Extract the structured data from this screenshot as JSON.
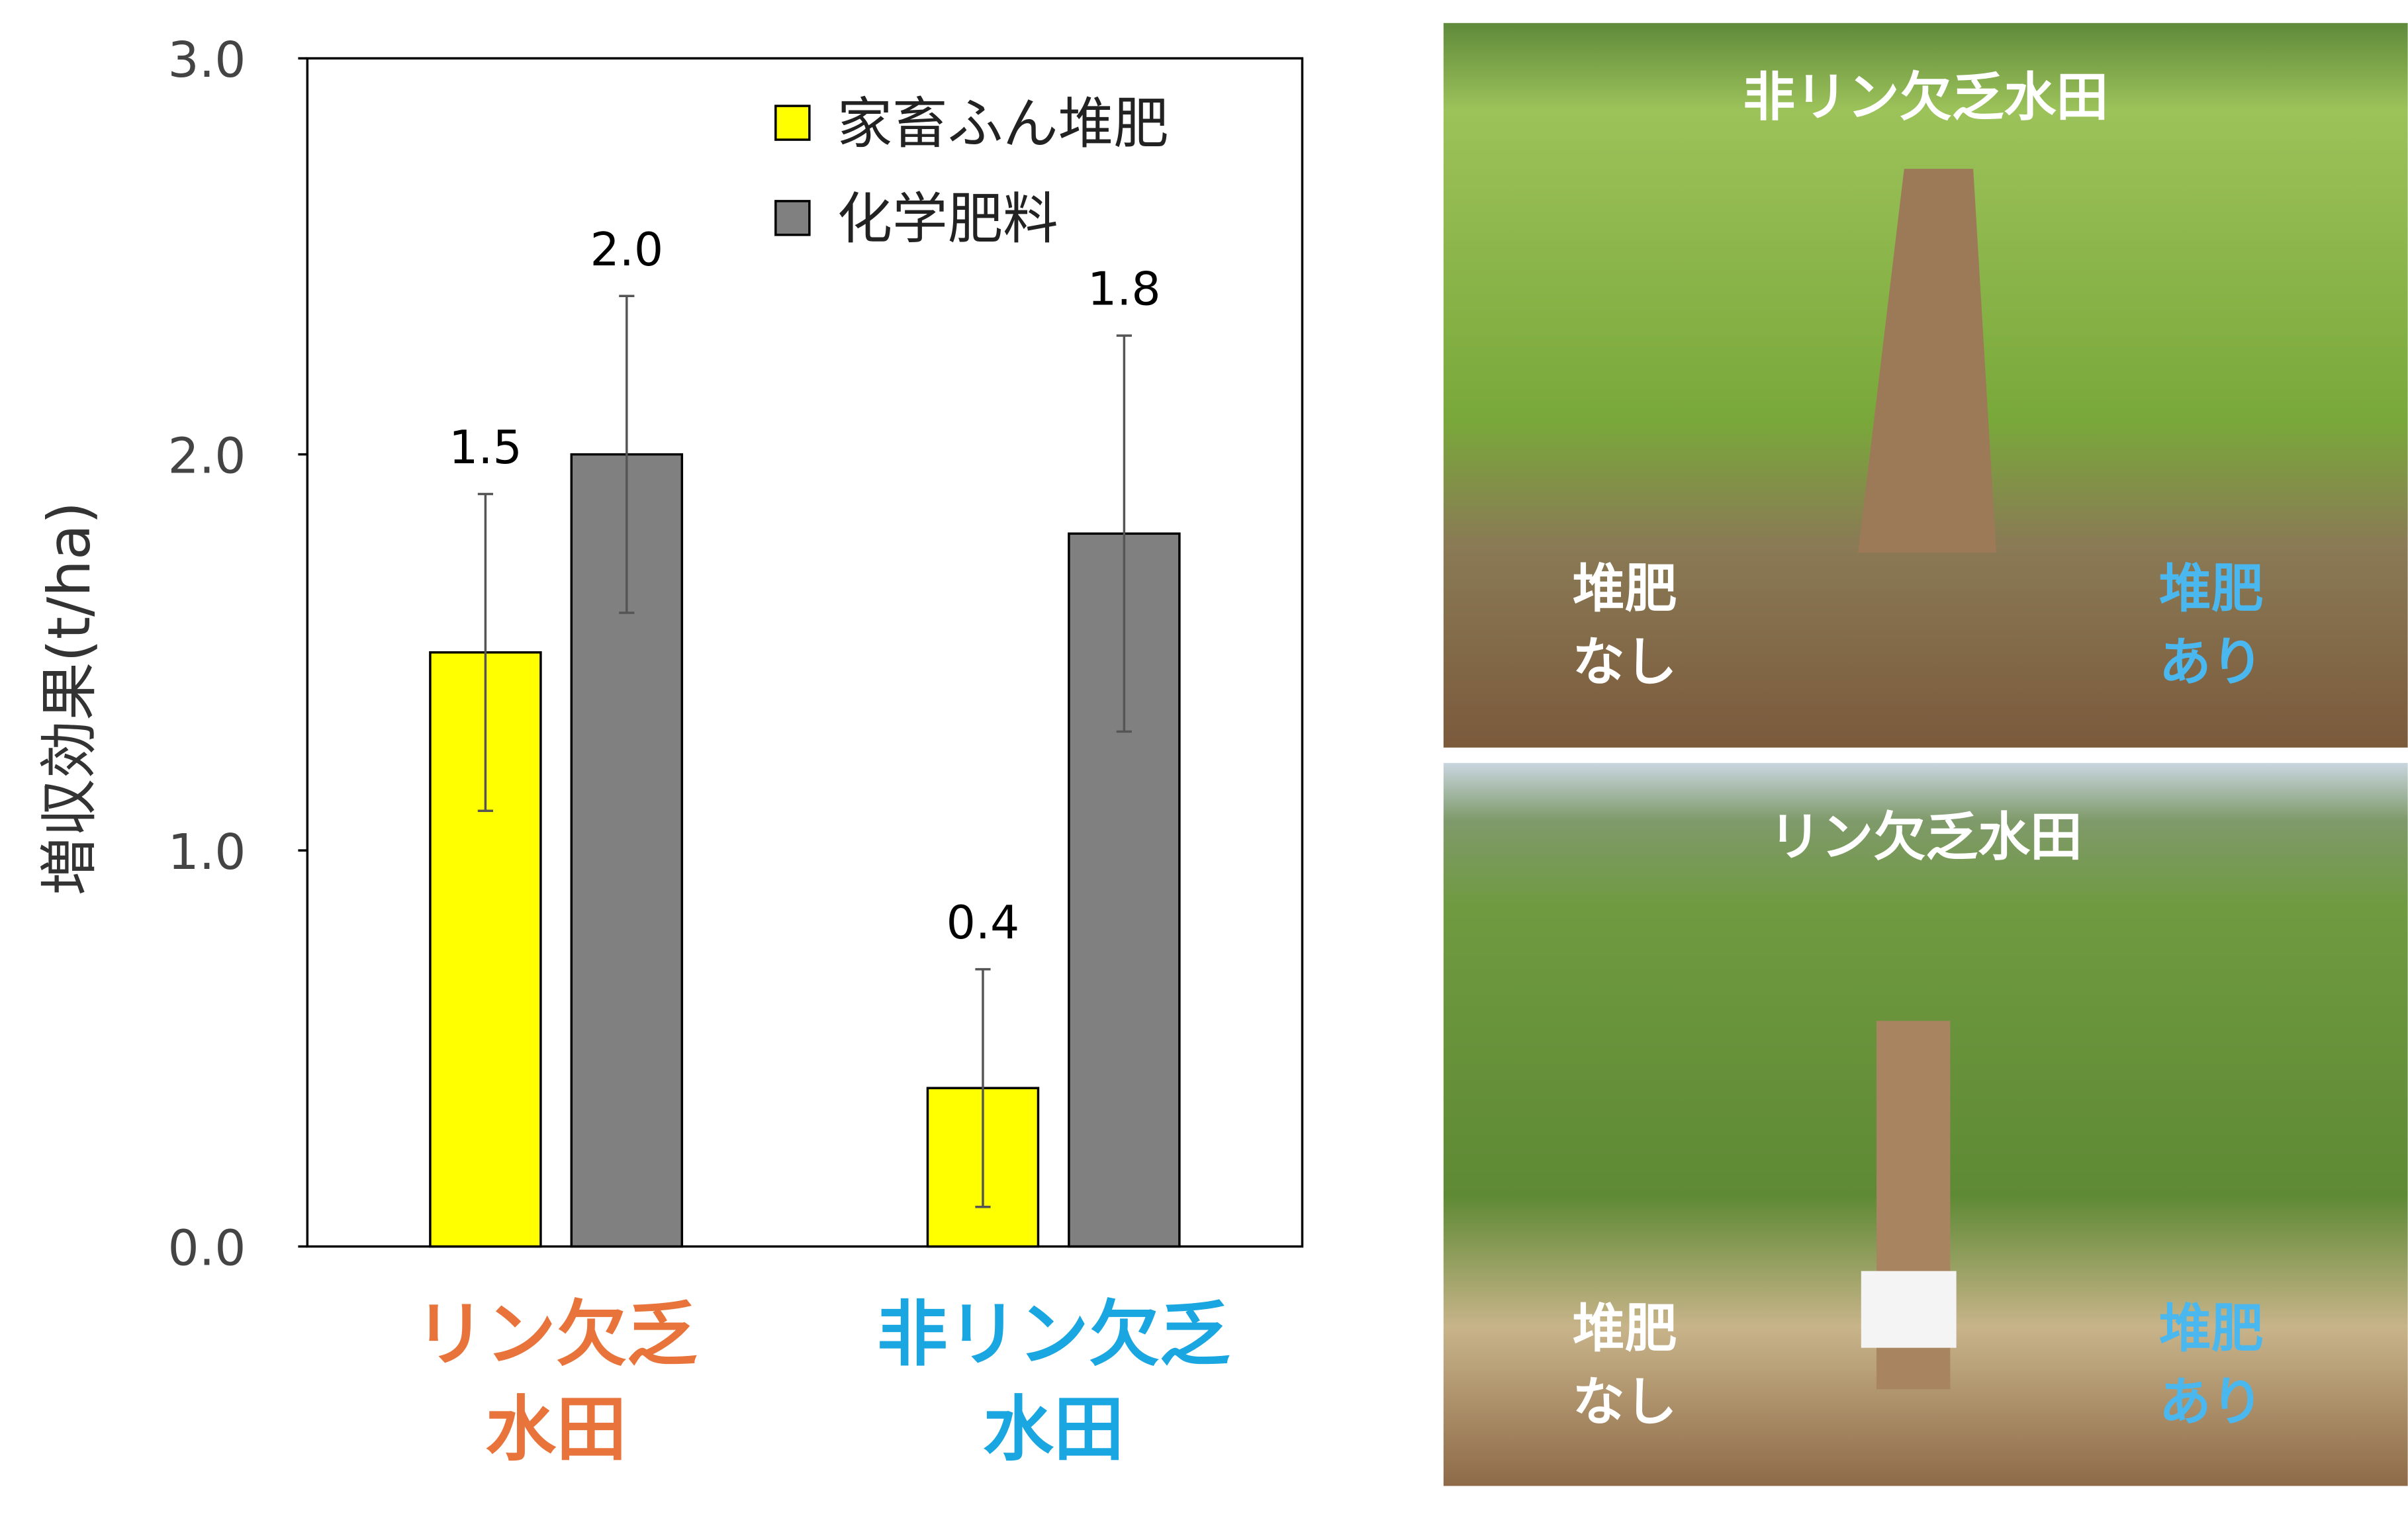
{
  "chart_data": {
    "type": "bar",
    "y_label": "増収効果(t/ha)",
    "categories": [
      "リン欠乏\n水田",
      "非リン欠乏\n水田"
    ],
    "category_colors": [
      "#e8743b",
      "#1aa6e0"
    ],
    "series": [
      {
        "name": "家畜ふん堆肥",
        "color": "#ffff00",
        "values": [
          1.5,
          0.4
        ],
        "errors": [
          0.4,
          0.3
        ],
        "value_labels": [
          "1.5",
          "0.4"
        ]
      },
      {
        "name": "化学肥料",
        "color": "#808080",
        "values": [
          2.0,
          1.8
        ],
        "errors": [
          0.4,
          0.5
        ],
        "value_labels": [
          "2.0",
          "1.8"
        ]
      }
    ],
    "ylim": [
      0,
      3
    ],
    "yticks": [
      {
        "value": 0,
        "label": "0.0"
      },
      {
        "value": 1,
        "label": "1.0"
      },
      {
        "value": 2,
        "label": "2.0"
      },
      {
        "value": 3,
        "label": "3.0"
      }
    ],
    "legend": "upper right"
  },
  "photos": [
    {
      "title": "非リン欠乏水田",
      "left_label": "堆肥\nなし",
      "right_label": "堆肥\nあり"
    },
    {
      "title": "リン欠乏水田",
      "left_label": "堆肥\nなし",
      "right_label": "堆肥\nあり"
    }
  ]
}
